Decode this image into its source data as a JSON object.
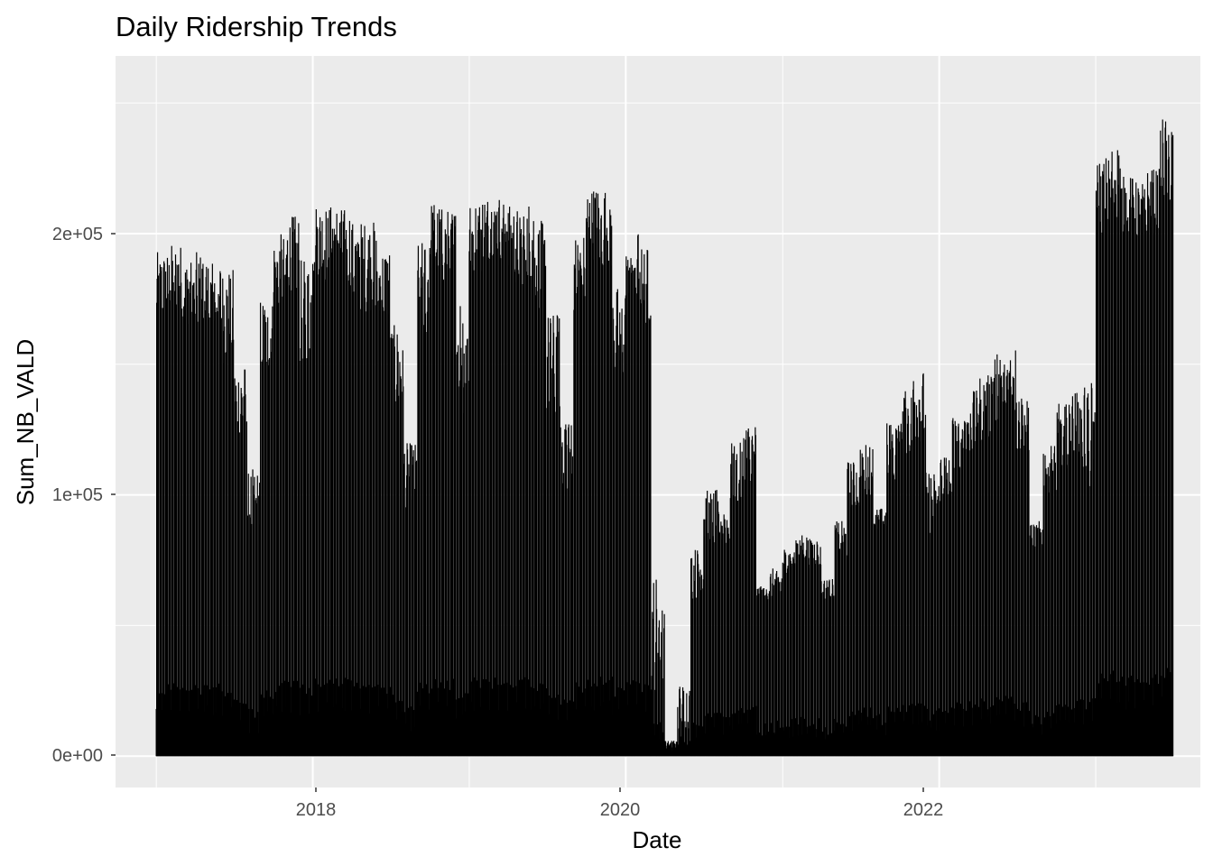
{
  "chart_data": {
    "type": "bar",
    "title": "Daily Ridership Trends",
    "xlabel": "Date",
    "ylabel": "Sum_NB_VALD",
    "x_ticks": [
      "2018",
      "2020",
      "2022"
    ],
    "y_ticks": [
      "0e+00",
      "1e+05",
      "2e+05"
    ],
    "ylim": [
      -12000,
      268000
    ],
    "xlim": [
      "2016-09-28",
      "2023-09-02"
    ],
    "grid": true,
    "legend": "none",
    "colors": {
      "bar": "#000000",
      "panel": "#ebebeb",
      "grid": "#ffffff"
    },
    "date_range": [
      "2017-01-01",
      "2023-06-30"
    ],
    "series": [
      {
        "x": [
          "2017-01",
          "2017-02",
          "2017-03",
          "2017-04",
          "2017-05",
          "2017-06",
          "2017-07",
          "2017-08",
          "2017-09",
          "2017-10",
          "2017-11",
          "2017-12",
          "2018-01",
          "2018-02",
          "2018-03",
          "2018-04",
          "2018-05",
          "2018-06",
          "2018-07",
          "2018-08",
          "2018-09",
          "2018-10",
          "2018-11",
          "2018-12",
          "2019-01",
          "2019-02",
          "2019-03",
          "2019-04",
          "2019-05",
          "2019-06",
          "2019-07",
          "2019-08",
          "2019-09",
          "2019-10",
          "2019-11",
          "2019-12",
          "2020-01",
          "2020-02",
          "2020-03",
          "2020-04",
          "2020-05",
          "2020-06",
          "2020-07",
          "2020-08",
          "2020-09",
          "2020-10",
          "2020-11",
          "2020-12",
          "2021-01",
          "2021-02",
          "2021-03",
          "2021-04",
          "2021-05",
          "2021-06",
          "2021-07",
          "2021-08",
          "2021-09",
          "2021-10",
          "2021-11",
          "2021-12",
          "2022-01",
          "2022-02",
          "2022-03",
          "2022-04",
          "2022-05",
          "2022-06",
          "2022-07",
          "2022-08",
          "2022-09",
          "2022-10",
          "2022-11",
          "2022-12",
          "2023-01",
          "2023-02",
          "2023-03",
          "2023-04",
          "2023-05",
          "2023-06"
        ],
        "weekday_peak": [
          193000,
          196000,
          190000,
          193000,
          191000,
          187000,
          150000,
          110000,
          175000,
          200000,
          207000,
          190000,
          212000,
          211000,
          210000,
          205000,
          205000,
          195000,
          165000,
          120000,
          197000,
          213000,
          210000,
          180000,
          213000,
          215000,
          215000,
          211000,
          213000,
          205000,
          170000,
          140000,
          200000,
          218000,
          218000,
          180000,
          202000,
          195000,
          70000,
          6000,
          28000,
          80000,
          102000,
          98000,
          120000,
          128000,
          65000,
          72000,
          80000,
          85000,
          84000,
          68000,
          90000,
          113000,
          120000,
          95000,
          128000,
          140000,
          148000,
          110000,
          118000,
          131000,
          140000,
          146000,
          155000,
          158000,
          140000,
          90000,
          120000,
          135000,
          140000,
          145000,
          230000,
          235000,
          222000,
          220000,
          225000,
          245000
        ],
        "weekday_low": [
          165000,
          170000,
          165000,
          160000,
          160000,
          150000,
          120000,
          80000,
          145000,
          170000,
          175000,
          150000,
          180000,
          185000,
          180000,
          170000,
          170000,
          165000,
          130000,
          95000,
          160000,
          180000,
          180000,
          130000,
          185000,
          190000,
          190000,
          180000,
          180000,
          170000,
          130000,
          100000,
          170000,
          190000,
          185000,
          140000,
          175000,
          165000,
          25000,
          4000,
          10000,
          60000,
          80000,
          80000,
          95000,
          105000,
          60000,
          60000,
          70000,
          75000,
          72000,
          60000,
          75000,
          95000,
          100000,
          85000,
          105000,
          115000,
          120000,
          85000,
          95000,
          110000,
          115000,
          120000,
          125000,
          130000,
          115000,
          80000,
          100000,
          110000,
          115000,
          100000,
          200000,
          205000,
          200000,
          198000,
          200000,
          210000
        ]
      }
    ]
  }
}
